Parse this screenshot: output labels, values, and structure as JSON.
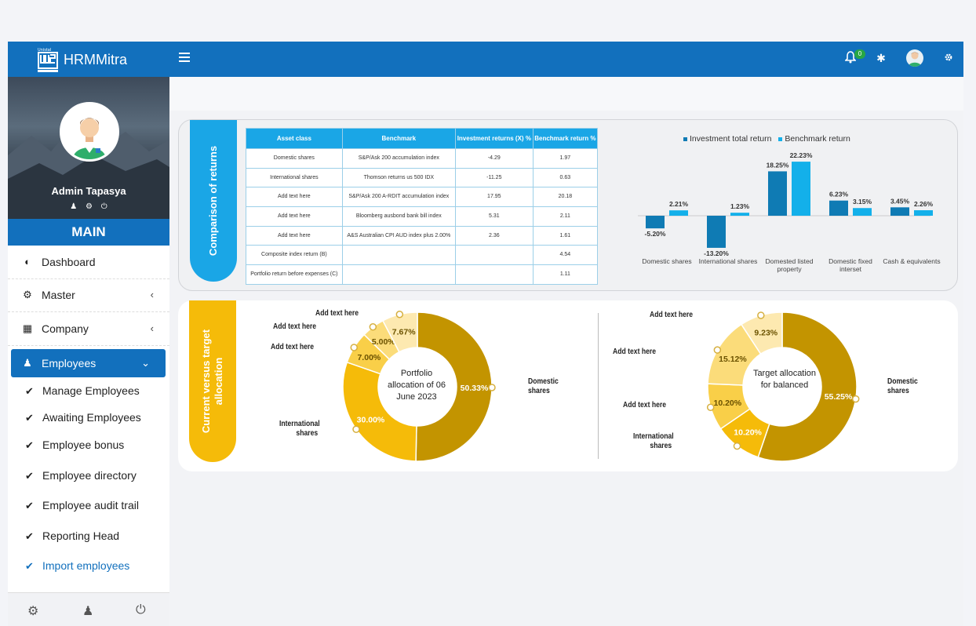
{
  "app": {
    "brand_name": "HRMMitra",
    "logo_text": "Unistal",
    "notification_count": "0",
    "colors": {
      "primary": "#1270bd",
      "accent_blue": "#1aa6e6",
      "accent_yellow": "#f5bb09",
      "gold": "#c69a00"
    }
  },
  "sidebar": {
    "user_name": "Admin Tapasya",
    "section_label": "MAIN",
    "items": [
      {
        "label": "Dashboard",
        "icon": "dashboard-icon"
      },
      {
        "label": "Master",
        "icon": "gear-icon"
      },
      {
        "label": "Company",
        "icon": "building-icon"
      },
      {
        "label": "Employees",
        "icon": "user-icon"
      }
    ],
    "sub_items": [
      {
        "label": "Manage Employees"
      },
      {
        "label": "Awaiting Employees"
      },
      {
        "label": "Employee bonus"
      },
      {
        "label": "Employee directory"
      },
      {
        "label": "Employee audit trail"
      },
      {
        "label": "Reporting Head"
      },
      {
        "label": "Import employees"
      }
    ]
  },
  "returns_panel": {
    "tab_label": "Comparison of returns",
    "table": {
      "headers": [
        "Asset class",
        "Benchmark",
        "Investment returns (X) %",
        "Benchmark return %"
      ],
      "rows": [
        [
          "Domestic shares",
          "S&P/Ask 200 accumulation index",
          "-4.29",
          "1.97"
        ],
        [
          "International shares",
          "Thomson returns us 500 IDX",
          "-11.25",
          "0.63"
        ],
        [
          "Add text here",
          "S&P/Ask 200 A-RDIT accumulation index",
          "17.95",
          "20.18"
        ],
        [
          "Add text here",
          "Bloomberg ausbond bank bill index",
          "5.31",
          "2.11"
        ],
        [
          "Add text here",
          "A&S Australian CPI AUD index plus 2.00%",
          "2.36",
          "1.61"
        ],
        [
          "Composite index return (B)",
          "",
          "",
          "4.54"
        ],
        [
          "Portfolio return before expenses (C)",
          "",
          "",
          "1.11"
        ]
      ]
    }
  },
  "allocation_panel": {
    "tab_label": "Current versus target allocation",
    "donut1": {
      "center": "Portfolio allocation of 06 June 2023",
      "callouts": [
        "Add text here",
        "Add text here",
        "Add text here",
        "International shares",
        "Domestic shares"
      ]
    },
    "donut2": {
      "center": "Target allocation for balanced",
      "callouts": [
        "Add text here",
        "Add text here",
        "Add text here",
        "International shares",
        "Domestic shares"
      ]
    }
  },
  "chart_data": [
    {
      "type": "bar",
      "title": "",
      "categories": [
        "Domestic shares",
        "International shares",
        "Domested listed property",
        "Domestic fixed interset",
        "Cash & equivalents"
      ],
      "series": [
        {
          "name": "Investment total return",
          "color": "#0f7bb4",
          "values": [
            -5.2,
            -13.2,
            18.25,
            6.23,
            3.45
          ],
          "labels": [
            "-5.20%",
            "-13.20%",
            "18.25%",
            "6.23%",
            "3.45%"
          ]
        },
        {
          "name": "Benchmark return",
          "color": "#13b0ea",
          "values": [
            2.21,
            1.23,
            22.23,
            3.15,
            2.26
          ],
          "labels": [
            "2.21%",
            "1.23%",
            "22.23%",
            "3.15%",
            "2.26%"
          ]
        }
      ],
      "legend": "top",
      "grid": false
    },
    {
      "type": "pie",
      "title": "Portfolio allocation of 06 June 2023",
      "slices": [
        {
          "label": "Domestic shares",
          "value": 50.33,
          "text": "50.33%",
          "color": "#c39400"
        },
        {
          "label": "International shares",
          "value": 30.0,
          "text": "30.00%",
          "color": "#f5bb09"
        },
        {
          "label": "Add text here",
          "value": 7.0,
          "text": "7.00%",
          "color": "#f9cf48"
        },
        {
          "label": "Add text here",
          "value": 5.0,
          "text": "5.00%",
          "color": "#fbdc7a"
        },
        {
          "label": "Add text here",
          "value": 7.67,
          "text": "7.67%",
          "color": "#fde9b0"
        }
      ]
    },
    {
      "type": "pie",
      "title": "Target allocation for balanced",
      "slices": [
        {
          "label": "Domestic shares",
          "value": 55.25,
          "text": "55.25%",
          "color": "#c39400"
        },
        {
          "label": "International shares",
          "value": 10.2,
          "text": "10.20%",
          "color": "#f5bb09"
        },
        {
          "label": "Add text here",
          "value": 10.2,
          "text": "10.20%",
          "color": "#f9cf48"
        },
        {
          "label": "Add text here",
          "value": 15.12,
          "text": "15.12%",
          "color": "#fbdc7a"
        },
        {
          "label": "Add text here",
          "value": 9.23,
          "text": "9.23%",
          "color": "#fde9b0"
        }
      ]
    }
  ]
}
